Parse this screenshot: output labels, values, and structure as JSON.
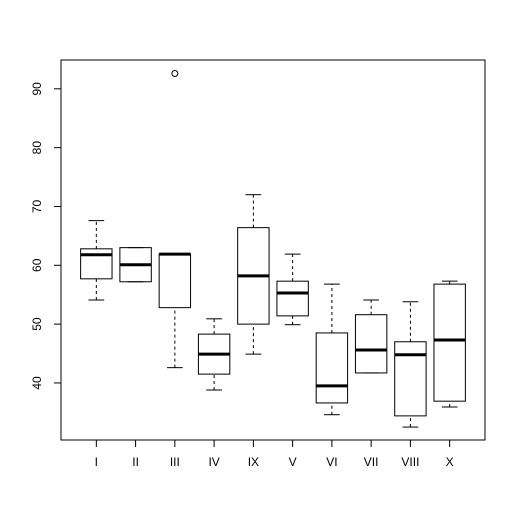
{
  "chart_data": {
    "type": "box",
    "categories": [
      "I",
      "II",
      "III",
      "IV",
      "IX",
      "V",
      "VI",
      "VII",
      "VIII",
      "X"
    ],
    "boxes": [
      {
        "whisker_low": 54.1,
        "q1": 57.7,
        "median": 61.8,
        "q3": 62.8,
        "whisker_high": 67.6
      },
      {
        "whisker_low": 57.2,
        "q1": 57.2,
        "median": 60.1,
        "q3": 63.0,
        "whisker_high": 63.0
      },
      {
        "whisker_low": 42.6,
        "q1": 52.8,
        "median": 61.9,
        "q3": 61.9,
        "whisker_high": 61.9,
        "outliers": [
          92.6
        ]
      },
      {
        "whisker_low": 38.8,
        "q1": 41.5,
        "median": 44.9,
        "q3": 48.3,
        "whisker_high": 50.9
      },
      {
        "whisker_low": 44.9,
        "q1": 50.0,
        "median": 58.2,
        "q3": 66.4,
        "whisker_high": 72.0
      },
      {
        "whisker_low": 49.9,
        "q1": 51.4,
        "median": 55.3,
        "q3": 57.3,
        "whisker_high": 61.9
      },
      {
        "whisker_low": 34.6,
        "q1": 36.6,
        "median": 39.5,
        "q3": 48.5,
        "whisker_high": 56.8
      },
      {
        "whisker_low": 41.7,
        "q1": 41.7,
        "median": 45.6,
        "q3": 51.6,
        "whisker_high": 54.1
      },
      {
        "whisker_low": 32.5,
        "q1": 34.4,
        "median": 44.8,
        "q3": 47.0,
        "whisker_high": 53.8
      },
      {
        "whisker_low": 35.9,
        "q1": 36.9,
        "median": 47.3,
        "q3": 56.8,
        "whisker_high": 57.3
      }
    ],
    "ylim": [
      30.3,
      94.9
    ],
    "yticks": [
      40,
      50,
      60,
      70,
      80,
      90
    ],
    "color": "#000000"
  }
}
